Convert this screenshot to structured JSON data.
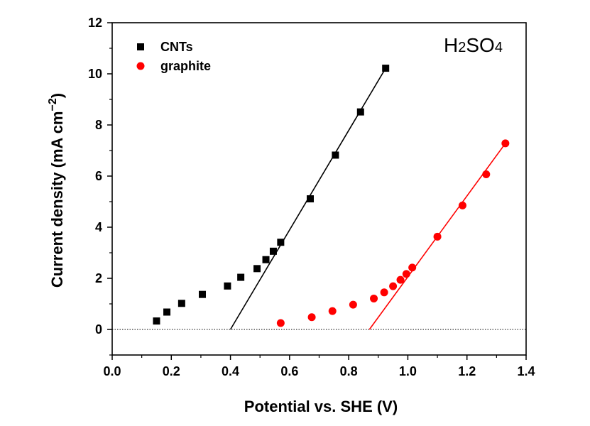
{
  "chart_data": {
    "type": "scatter",
    "xlabel": "Potential vs. SHE (V)",
    "ylabel": "Current density (mA cm",
    "ylabel_sup": "−2",
    "ylabel_close": ")",
    "xlim": [
      0.0,
      1.4
    ],
    "ylim": [
      -1,
      12
    ],
    "x_ticks": [
      0.0,
      0.2,
      0.4,
      0.6,
      0.8,
      1.0,
      1.2,
      1.4
    ],
    "x_tick_labels": [
      "0.0",
      "0.2",
      "0.4",
      "0.6",
      "0.8",
      "1.0",
      "1.2",
      "1.4"
    ],
    "y_ticks": [
      0,
      2,
      4,
      6,
      8,
      10,
      12
    ],
    "y_tick_labels": [
      "0",
      "2",
      "4",
      "6",
      "8",
      "10",
      "12"
    ],
    "annotation": {
      "main": "H",
      "sub1": "2",
      "mid": "SO",
      "sub2": "4"
    },
    "legend_position": "top-left",
    "zero_line": true,
    "series": [
      {
        "name": "CNTs",
        "marker": "square",
        "color": "#000000",
        "x": [
          0.15,
          0.185,
          0.235,
          0.305,
          0.39,
          0.435,
          0.49,
          0.52,
          0.545,
          0.57,
          0.67,
          0.755,
          0.84,
          0.925
        ],
        "y": [
          0.33,
          0.68,
          1.02,
          1.37,
          1.7,
          2.04,
          2.38,
          2.73,
          3.06,
          3.41,
          5.11,
          6.82,
          8.51,
          10.22
        ],
        "fit": {
          "x": [
            0.4,
            0.925
          ],
          "y": [
            0.0,
            10.22
          ]
        }
      },
      {
        "name": "graphite",
        "marker": "circle",
        "color": "#ff0000",
        "x": [
          0.57,
          0.675,
          0.745,
          0.815,
          0.885,
          0.92,
          0.95,
          0.975,
          0.995,
          1.015,
          1.1,
          1.185,
          1.265,
          1.33
        ],
        "y": [
          0.25,
          0.48,
          0.72,
          0.97,
          1.21,
          1.45,
          1.69,
          1.94,
          2.17,
          2.42,
          3.63,
          4.85,
          6.07,
          7.28
        ],
        "fit": {
          "x": [
            0.87,
            1.33
          ],
          "y": [
            0.0,
            7.28
          ]
        }
      }
    ]
  }
}
